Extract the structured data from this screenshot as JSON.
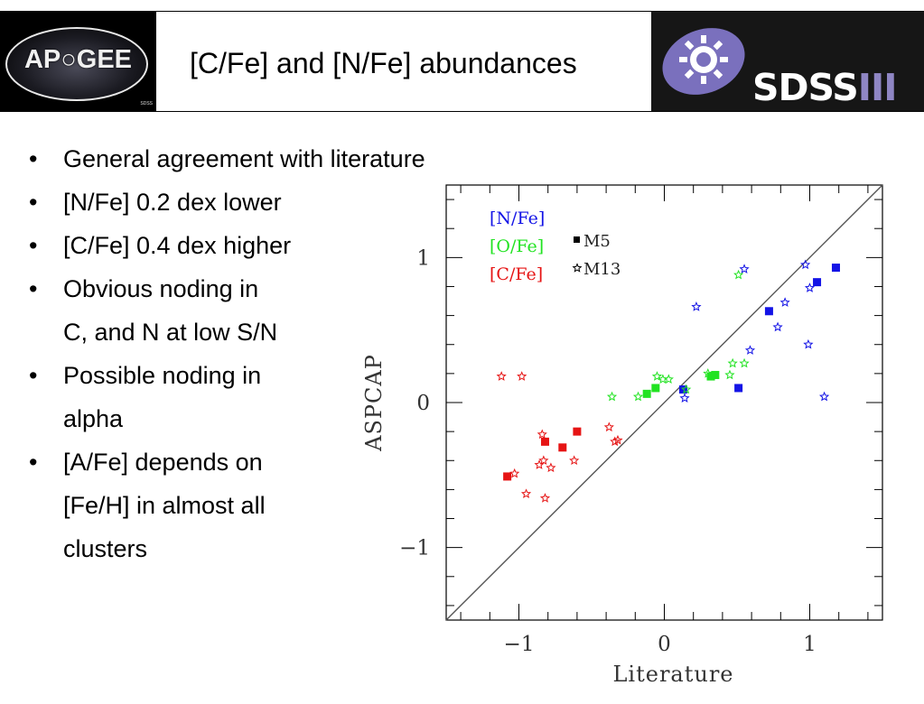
{
  "header": {
    "title": "[C/Fe] and [N/Fe] abundances",
    "left_logo_text": "AP○GEE",
    "right_logo_text": "SDSS",
    "right_logo_roman": "III",
    "left_logo_small": "SDSS"
  },
  "bullets": [
    {
      "lines": [
        "General agreement with literature"
      ]
    },
    {
      "lines": [
        "[N/Fe] 0.2 dex lower"
      ]
    },
    {
      "lines": [
        "[C/Fe] 0.4 dex higher"
      ]
    },
    {
      "lines": [
        "Obvious noding in",
        "C, and N at low S/N"
      ]
    },
    {
      "lines": [
        "Possible noding in",
        "alpha"
      ]
    },
    {
      "lines": [
        "[A/Fe] depends on",
        "[Fe/H] in almost all",
        "clusters"
      ]
    }
  ],
  "colors": {
    "n_fe": "#1414e6",
    "o_fe": "#22e322",
    "c_fe": "#e61414",
    "axis": "#000000",
    "one_to_one": "#555555"
  },
  "chart_data": {
    "type": "scatter",
    "xlabel": "Literature",
    "ylabel": "ASPCAP",
    "xlim": [
      -1.5,
      1.5
    ],
    "ylim": [
      -1.5,
      1.5
    ],
    "xticks": [
      -1,
      0,
      1
    ],
    "yticks": [
      -1,
      0,
      1
    ],
    "xtick_labels": [
      "−1",
      "0",
      "1"
    ],
    "ytick_labels": [
      "−1",
      "0",
      "1"
    ],
    "one_to_one_line": true,
    "legend_series": [
      "[N/Fe]",
      "[O/Fe]",
      "[C/Fe]"
    ],
    "legend_markers": [
      {
        "symbol": "■",
        "label": "M5"
      },
      {
        "symbol": "☆",
        "label": "M13"
      }
    ],
    "series": [
      {
        "name": "[N/Fe]",
        "color": "#1414e6",
        "M5": [
          [
            0.13,
            0.09
          ],
          [
            0.51,
            0.1
          ],
          [
            0.72,
            0.63
          ],
          [
            1.05,
            0.83
          ],
          [
            1.18,
            0.93
          ]
        ],
        "M13": [
          [
            0.14,
            0.03
          ],
          [
            0.22,
            0.66
          ],
          [
            0.55,
            0.92
          ],
          [
            0.59,
            0.36
          ],
          [
            0.78,
            0.52
          ],
          [
            0.83,
            0.69
          ],
          [
            0.97,
            0.95
          ],
          [
            0.99,
            0.4
          ],
          [
            1.0,
            0.79
          ],
          [
            1.1,
            0.04
          ]
        ]
      },
      {
        "name": "[O/Fe]",
        "color": "#22e322",
        "M5": [
          [
            -0.12,
            0.06
          ],
          [
            -0.06,
            0.1
          ],
          [
            0.32,
            0.18
          ],
          [
            0.35,
            0.19
          ]
        ],
        "M13": [
          [
            -0.36,
            0.04
          ],
          [
            -0.18,
            0.04
          ],
          [
            -0.05,
            0.18
          ],
          [
            -0.01,
            0.16
          ],
          [
            0.03,
            0.16
          ],
          [
            0.15,
            0.09
          ],
          [
            0.3,
            0.2
          ],
          [
            0.45,
            0.19
          ],
          [
            0.47,
            0.27
          ],
          [
            0.51,
            0.88
          ],
          [
            0.55,
            0.27
          ]
        ]
      },
      {
        "name": "[C/Fe]",
        "color": "#e61414",
        "M5": [
          [
            -1.08,
            -0.51
          ],
          [
            -0.82,
            -0.27
          ],
          [
            -0.7,
            -0.31
          ],
          [
            -0.6,
            -0.2
          ]
        ],
        "M13": [
          [
            -1.12,
            0.18
          ],
          [
            -0.98,
            0.18
          ],
          [
            -1.03,
            -0.49
          ],
          [
            -0.95,
            -0.63
          ],
          [
            -0.86,
            -0.43
          ],
          [
            -0.83,
            -0.4
          ],
          [
            -0.84,
            -0.22
          ],
          [
            -0.82,
            -0.66
          ],
          [
            -0.78,
            -0.45
          ],
          [
            -0.62,
            -0.4
          ],
          [
            -0.38,
            -0.17
          ],
          [
            -0.34,
            -0.27
          ],
          [
            -0.32,
            -0.26
          ]
        ]
      }
    ]
  }
}
